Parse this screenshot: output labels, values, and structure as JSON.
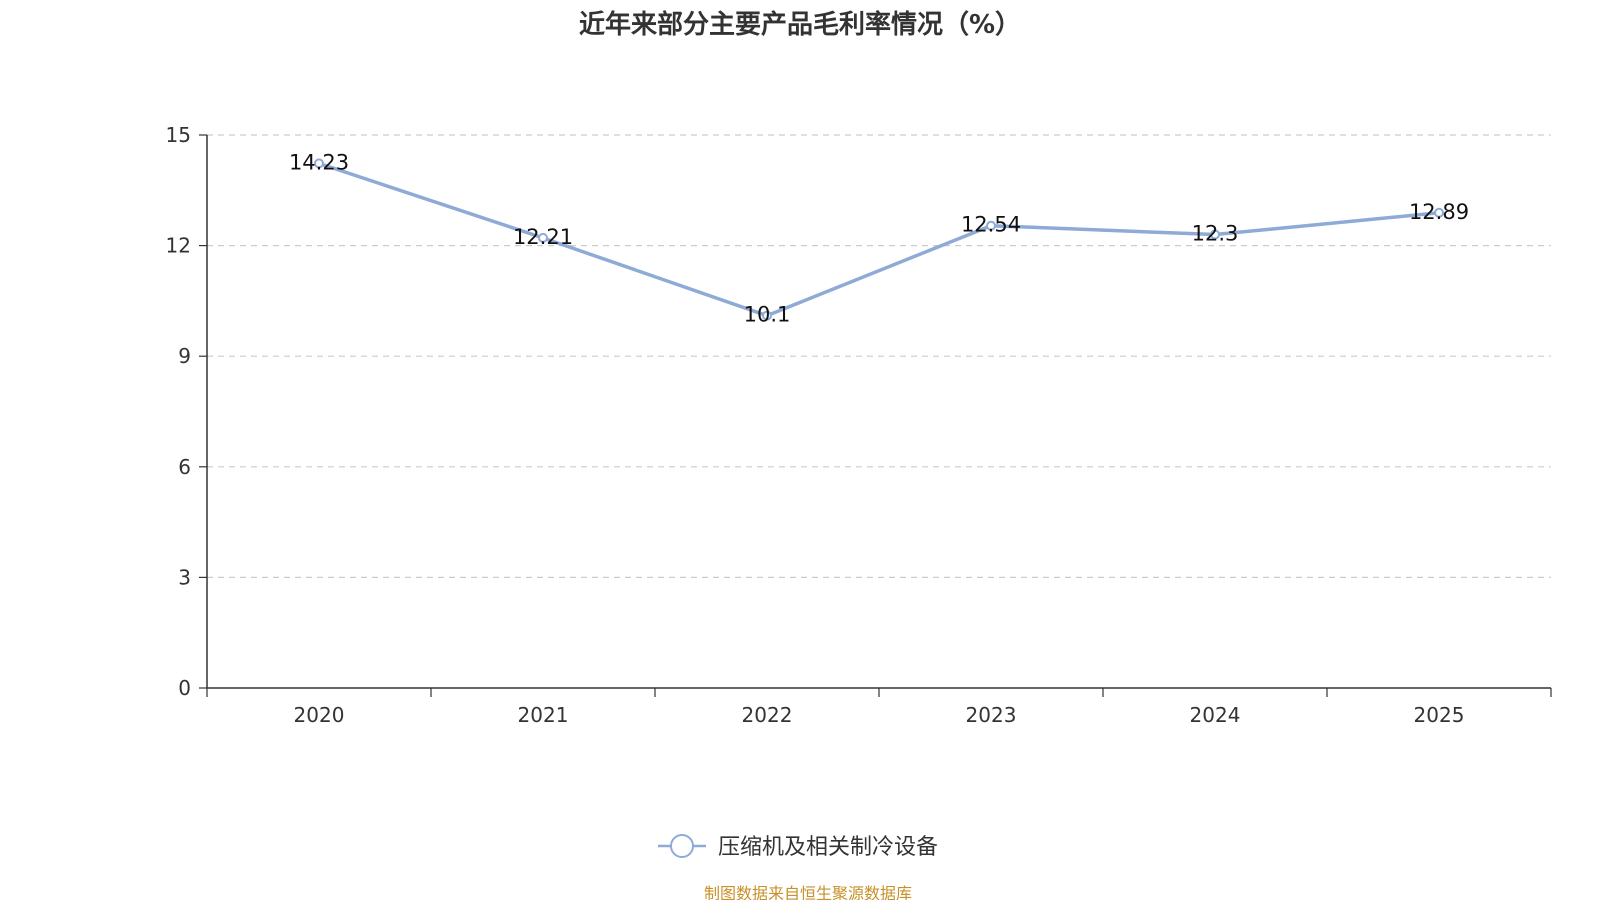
{
  "chart_data": {
    "type": "line",
    "title": "近年来部分主要产品毛利率情况（%）",
    "categories": [
      "2020",
      "2021",
      "2022",
      "2023",
      "2024",
      "2025"
    ],
    "series": [
      {
        "name": "压缩机及相关制冷设备",
        "values": [
          14.23,
          12.21,
          10.1,
          12.54,
          12.3,
          12.89
        ]
      }
    ],
    "data_labels": [
      "14.23",
      "12.21",
      "10.1",
      "12.54",
      "12.3",
      "12.89"
    ],
    "yticks": [
      "0",
      "3",
      "6",
      "9",
      "12",
      "15"
    ],
    "ylim": [
      0,
      15
    ],
    "xlabel": "",
    "ylabel": "",
    "grid": true,
    "legend_position": "bottom-center",
    "colors": {
      "series": "#8eaad6",
      "axis": "#333333",
      "grid": "#cccccc",
      "source": "#c8902a"
    }
  },
  "source_text": "制图数据来自恒生聚源数据库"
}
